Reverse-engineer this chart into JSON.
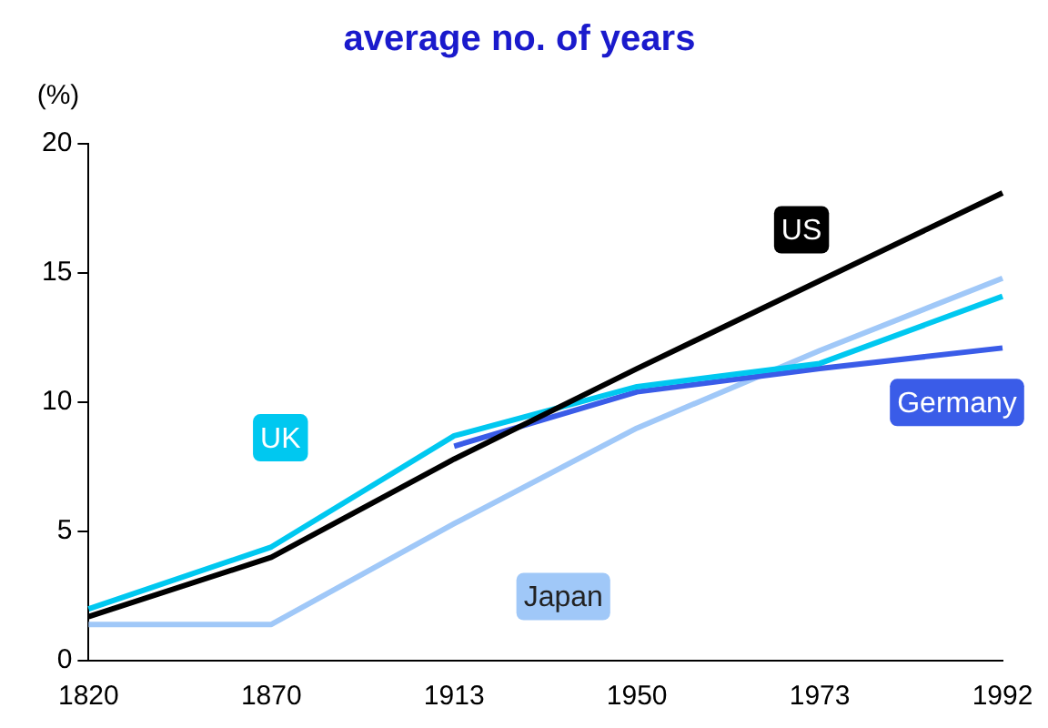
{
  "chart_data": {
    "type": "line",
    "title": "average no. of years",
    "ylabel": "(%)",
    "categories": [
      "1820",
      "1870",
      "1913",
      "1950",
      "1973",
      "1992"
    ],
    "series": [
      {
        "name": "US",
        "color": "#000000",
        "values": [
          1.7,
          4.0,
          7.8,
          11.3,
          14.7,
          18.1
        ]
      },
      {
        "name": "UK",
        "color": "#00c8f0",
        "values": [
          2.0,
          4.4,
          8.7,
          10.6,
          11.5,
          14.1
        ]
      },
      {
        "name": "Germany",
        "color": "#3a5ce8",
        "values": [
          null,
          null,
          8.3,
          10.4,
          11.3,
          12.1
        ]
      },
      {
        "name": "Japan",
        "color": "#a0c8f8",
        "values": [
          1.4,
          1.4,
          5.3,
          9.0,
          12.0,
          14.8
        ]
      }
    ],
    "ylim": [
      0,
      20
    ],
    "yticks": [
      0,
      5,
      10,
      15,
      20
    ],
    "grid": false,
    "legend": false,
    "marker": "none",
    "line_style": "solid"
  }
}
